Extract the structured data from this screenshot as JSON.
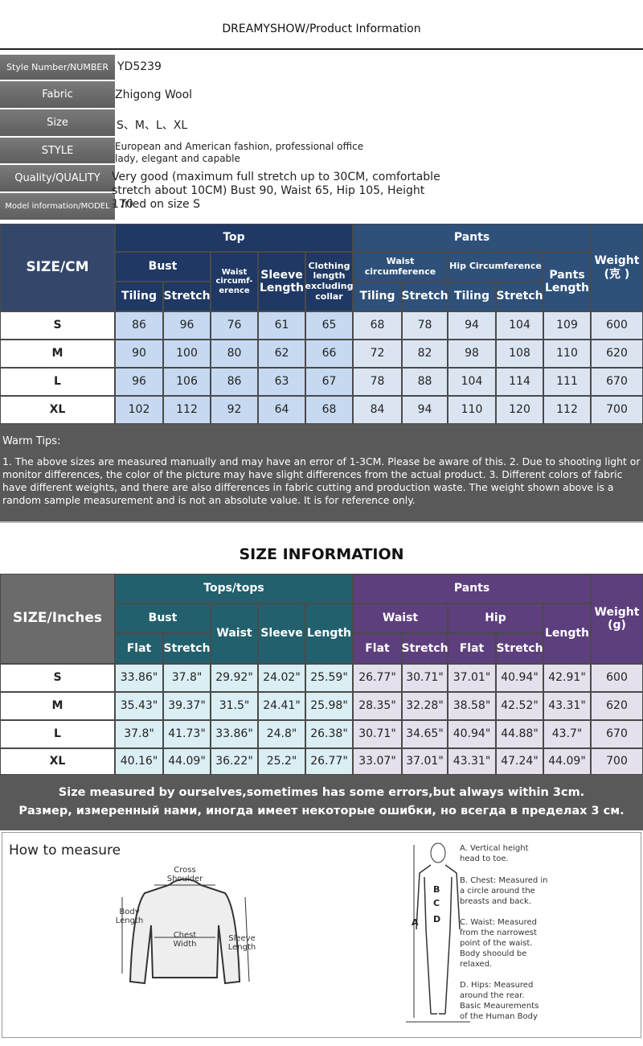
{
  "header": {
    "title": "DREAMYSHOW/Product Information"
  },
  "info": [
    {
      "label": "Style Number/NUMBER",
      "value": "YD5239"
    },
    {
      "label": "Fabric",
      "value": "Zhigong Wool"
    },
    {
      "label": "Size",
      "value": "S、M、L、XL"
    },
    {
      "label": "STYLE",
      "value": "European and American fashion, professional office lady, elegant and capable"
    },
    {
      "label": "Quality/QUALITY",
      "value": "Very good (maximum full stretch up to 30CM, comfortable stretch about 10CM) Bust 90, Waist 65, Hip 105, Height 170"
    },
    {
      "label": "Model information/MODEL",
      "value": "- Tried on size S"
    }
  ],
  "cm_table": {
    "corner": "SIZE/CM",
    "groups": [
      "Top",
      "Pants"
    ],
    "weight": "Weight (克 )",
    "subheaders": [
      "Bust",
      "Waist circumf-erence",
      "Sleeve Length",
      "Clothing length excluding collar",
      "Waist circumference",
      "Hip Circumference",
      "Pants Length"
    ],
    "leaf": [
      "Tiling",
      "Stretch",
      "Tiling",
      "Stretch",
      "Tiling",
      "Stretch"
    ],
    "rows": [
      [
        "S",
        86,
        96,
        76,
        61,
        65,
        68,
        78,
        94,
        104,
        109,
        600
      ],
      [
        "M",
        90,
        100,
        80,
        62,
        66,
        72,
        82,
        98,
        108,
        110,
        620
      ],
      [
        "L",
        96,
        106,
        86,
        63,
        67,
        78,
        88,
        104,
        114,
        111,
        670
      ],
      [
        "XL",
        102,
        112,
        92,
        64,
        68,
        84,
        94,
        110,
        120,
        112,
        700
      ]
    ]
  },
  "warm_tips": {
    "title": "Warm Tips:",
    "text": "1. The above sizes are measured manually and may have an error of 1-3CM. Please be aware of this. 2. Due to shooting light or monitor differences, the color of the picture may have slight differences from the actual product. 3. Different colors of fabric have different weights, and there are also differences in fabric cutting and production waste. The weight shown above is a random sample measurement and is not an absolute value. It is for reference only."
  },
  "size_info_title": "SIZE INFORMATION",
  "inch_table": {
    "corner": "SIZE/Inches",
    "groups": [
      "Tops/tops",
      "Pants"
    ],
    "weight": "Weight (g)",
    "subheaders": [
      "Bust",
      "Waist",
      "Sleeve",
      "Length",
      "Waist",
      "Hip",
      "Length"
    ],
    "leaf": [
      "Flat",
      "Stretch",
      "Flat",
      "Stretch",
      "Flat",
      "Stretch"
    ],
    "rows": [
      [
        "S",
        "33.86\"",
        "37.8\"",
        "29.92\"",
        "24.02\"",
        "25.59\"",
        "26.77\"",
        "30.71\"",
        "37.01\"",
        "40.94\"",
        "42.91\"",
        600
      ],
      [
        "M",
        "35.43\"",
        "39.37\"",
        "31.5\"",
        "24.41\"",
        "25.98\"",
        "28.35\"",
        "32.28\"",
        "38.58\"",
        "42.52\"",
        "43.31\"",
        620
      ],
      [
        "L",
        "37.8\"",
        "41.73\"",
        "33.86\"",
        "24.8\"",
        "26.38\"",
        "30.71\"",
        "34.65\"",
        "40.94\"",
        "44.88\"",
        "43.7\"",
        670
      ],
      [
        "XL",
        "40.16\"",
        "44.09\"",
        "36.22\"",
        "25.2\"",
        "26.77\"",
        "33.07\"",
        "37.01\"",
        "43.31\"",
        "47.24\"",
        "44.09\"",
        700
      ]
    ]
  },
  "note": {
    "en": "Size measured by ourselves,sometimes has some errors,but always within 3cm.",
    "ru": "Размер, измеренный нами, иногда имеет некоторые ошибки, но всегда в пределах 3 см."
  },
  "measure": {
    "title": "How to measure",
    "sweater_labels": [
      "Cross Shoulder",
      "Body Length",
      "Chest Width",
      "Sleeve Length"
    ],
    "body_letters": [
      "A",
      "B",
      "C",
      "D"
    ],
    "body_notes": [
      "A. Vertical height head to toe.",
      "B. Chest: Measured in a circle around the breasts and back.",
      "C. Waist: Measured from the narrowest point of the waist. Body shoould be relaxed.",
      "D. Hips: Measured around the rear. Basic Meaurements of the Human Body"
    ]
  }
}
